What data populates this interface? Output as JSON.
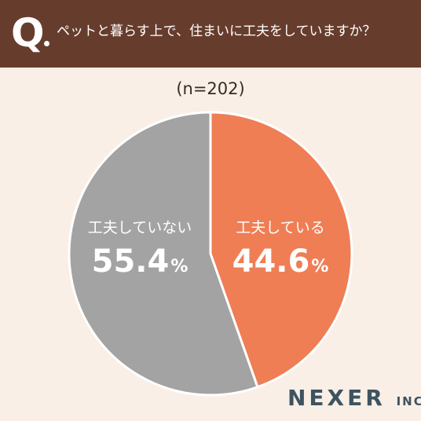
{
  "header": {
    "q_letter": "Q",
    "question": "ペットと暮らす上で、住まいに工夫をしていますか？"
  },
  "sample": "(n=202)",
  "brand": {
    "name": "NEXER",
    "suffix": "INC."
  },
  "colors": {
    "header_bg": "#663d2d",
    "background": "#f9efe6",
    "yes": "#ef7e55",
    "no": "#a3a3a3"
  },
  "chart_data": {
    "type": "pie",
    "title": "ペットと暮らす上で、住まいに工夫をしていますか？",
    "categories": [
      "工夫している",
      "工夫していない"
    ],
    "values": [
      44.6,
      55.4
    ],
    "value_labels": [
      "44.6",
      "55.4"
    ],
    "unit": "%",
    "colors": [
      "#ef7e55",
      "#a3a3a3"
    ],
    "start": "12 o'clock",
    "direction": "clockwise",
    "legend": "none (labels inside slices)"
  }
}
